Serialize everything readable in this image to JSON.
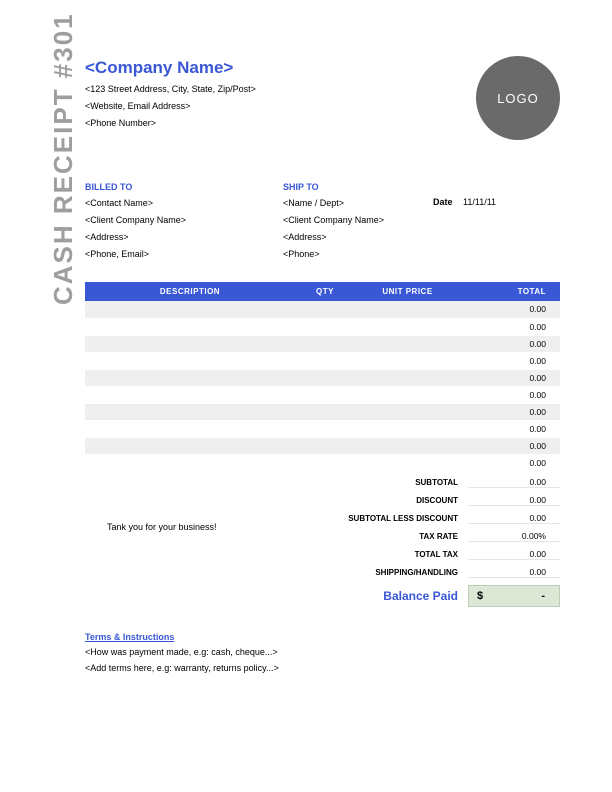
{
  "colors": {
    "accent": "#3a57d6",
    "sidebar_text": "#9e9e9e",
    "logo_bg": "#6a6a6a",
    "row_odd": "#efefef",
    "row_even": "#ffffff",
    "balance_bg": "#dce8d5",
    "balance_border": "#bfcab7"
  },
  "sidebar": {
    "title": "CASH RECEIPT #301"
  },
  "company": {
    "name": "<Company Name>",
    "address": "<123 Street Address, City, State, Zip/Post>",
    "contact": "<Website, Email Address>",
    "phone": "<Phone Number>",
    "logo_text": "LOGO"
  },
  "billed_to": {
    "heading": "BILLED TO",
    "contact": "<Contact Name>",
    "company": "<Client Company Name>",
    "address": "<Address>",
    "phone_email": "<Phone, Email>"
  },
  "ship_to": {
    "heading": "SHIP TO",
    "name_dept": "<Name / Dept>",
    "company": "<Client Company Name>",
    "address": "<Address>",
    "phone": "<Phone>"
  },
  "meta": {
    "date_label": "Date",
    "date_value": "11/11/11"
  },
  "table": {
    "columns": {
      "description": "DESCRIPTION",
      "qty": "QTY",
      "unit_price": "UNIT PRICE",
      "total": "TOTAL"
    },
    "rows": [
      {
        "description": "",
        "qty": "",
        "unit_price": "",
        "total": "0.00"
      },
      {
        "description": "",
        "qty": "",
        "unit_price": "",
        "total": "0.00"
      },
      {
        "description": "",
        "qty": "",
        "unit_price": "",
        "total": "0.00"
      },
      {
        "description": "",
        "qty": "",
        "unit_price": "",
        "total": "0.00"
      },
      {
        "description": "",
        "qty": "",
        "unit_price": "",
        "total": "0.00"
      },
      {
        "description": "",
        "qty": "",
        "unit_price": "",
        "total": "0.00"
      },
      {
        "description": "",
        "qty": "",
        "unit_price": "",
        "total": "0.00"
      },
      {
        "description": "",
        "qty": "",
        "unit_price": "",
        "total": "0.00"
      },
      {
        "description": "",
        "qty": "",
        "unit_price": "",
        "total": "0.00"
      },
      {
        "description": "",
        "qty": "",
        "unit_price": "",
        "total": "0.00"
      }
    ]
  },
  "thank_you": "Tank you for your business!",
  "summary": {
    "subtotal": {
      "label": "SUBTOTAL",
      "value": "0.00"
    },
    "discount": {
      "label": "DISCOUNT",
      "value": "0.00"
    },
    "subtotal_less_discount": {
      "label": "SUBTOTAL LESS DISCOUNT",
      "value": "0.00"
    },
    "tax_rate": {
      "label": "TAX RATE",
      "value": "0.00%"
    },
    "total_tax": {
      "label": "TOTAL TAX",
      "value": "0.00"
    },
    "shipping": {
      "label": "SHIPPING/HANDLING",
      "value": "0.00"
    },
    "balance": {
      "label": "Balance Paid",
      "currency": "$",
      "value": "-"
    }
  },
  "terms": {
    "heading": "Terms & Instructions",
    "line1": "<How was payment made, e.g: cash, cheque...>",
    "line2": "<Add terms here, e.g: warranty, returns policy...>"
  }
}
